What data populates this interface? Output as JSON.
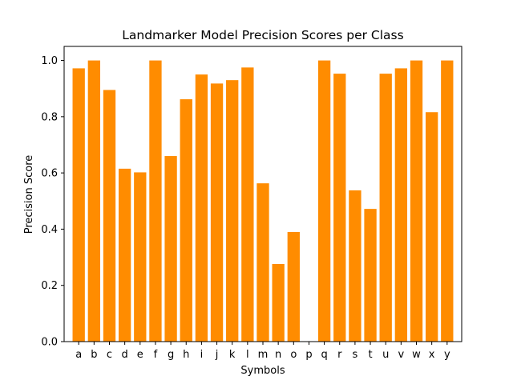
{
  "chart_data": {
    "type": "bar",
    "title": "Landmarker Model Precision Scores per Class",
    "xlabel": "Symbols",
    "ylabel": "Precision Score",
    "categories": [
      "a",
      "b",
      "c",
      "d",
      "e",
      "f",
      "g",
      "h",
      "i",
      "j",
      "k",
      "l",
      "m",
      "n",
      "o",
      "p",
      "q",
      "r",
      "s",
      "t",
      "u",
      "v",
      "w",
      "x",
      "y"
    ],
    "values": [
      0.972,
      1.0,
      0.895,
      0.615,
      0.602,
      1.0,
      0.66,
      0.862,
      0.95,
      0.918,
      0.93,
      0.975,
      0.563,
      0.276,
      0.39,
      0.0,
      1.0,
      0.953,
      0.538,
      0.472,
      0.953,
      0.972,
      1.0,
      0.816,
      1.0
    ],
    "ylim": [
      0,
      1.05
    ],
    "yticks": [
      0.0,
      0.2,
      0.4,
      0.6,
      0.8,
      1.0
    ],
    "ytick_labels": [
      "0.0",
      "0.2",
      "0.4",
      "0.6",
      "0.8",
      "1.0"
    ],
    "bar_color": "#ff8c00",
    "grid": false,
    "legend": "none"
  }
}
